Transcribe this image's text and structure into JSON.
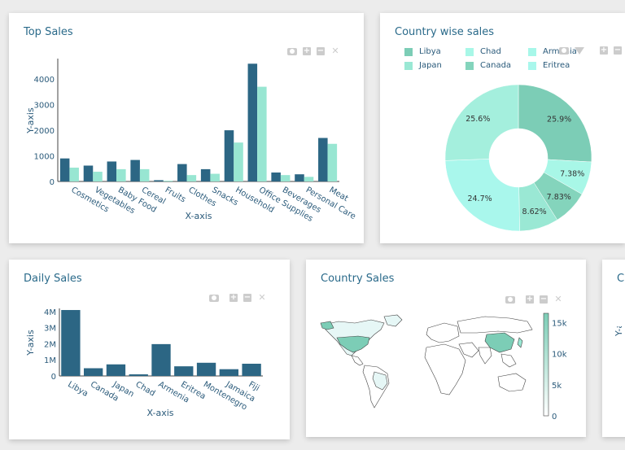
{
  "colors": {
    "bar_dark": "#2c6684",
    "bar_light": "#98e6d2",
    "axis_text": "#2a5a7a"
  },
  "cards": {
    "top_sales": {
      "title": "Top Sales"
    },
    "country_wise": {
      "title": "Country wise sales"
    },
    "daily_sales": {
      "title": "Daily Sales"
    },
    "country_sales": {
      "title": "Country Sales"
    },
    "partial": {
      "title": "C"
    }
  },
  "chart_data": [
    {
      "type": "bar",
      "xlabel": "X-axis",
      "ylabel": "Y-axis",
      "ylim": [
        0,
        4800
      ],
      "yticks": [
        0,
        1000,
        2000,
        3000,
        4000
      ],
      "categories": [
        "Cosmetics",
        "Vegetables",
        "Baby Food",
        "Cereal",
        "Fruits",
        "Clothes",
        "Snacks",
        "Household",
        "Office Supplies",
        "Beverages",
        "Personal Care",
        "Meat"
      ],
      "series": [
        {
          "values": [
            900,
            620,
            780,
            840,
            50,
            680,
            480,
            2000,
            4600,
            350,
            280,
            1700
          ]
        },
        {
          "values": [
            540,
            380,
            480,
            480,
            30,
            250,
            300,
            1520,
            3700,
            250,
            180,
            1470
          ]
        }
      ]
    },
    {
      "type": "pie",
      "labels": [
        "Libya",
        "Chad",
        "Armenia",
        "Japan",
        "Canada",
        "Eritrea"
      ],
      "values": [
        25.9,
        7.38,
        7.83,
        8.62,
        24.7,
        25.6
      ],
      "colors": [
        "#7ccdb6",
        "#a8f7e7",
        "#84d4bc",
        "#9ae8d4",
        "#a9f7ec",
        "#a4efdd"
      ],
      "legend_colors": [
        "#7ccdb6",
        "#a8f7e7",
        "#a7f7e9",
        "#9ae8d4",
        "#84d4bc",
        "#a9f7ec"
      ],
      "slice_labels": [
        "25.9%",
        "7.38%",
        "7.83%",
        "8.62%",
        "24.7%",
        "25.6%"
      ],
      "hole": true
    },
    {
      "type": "bar",
      "xlabel": "X-axis",
      "ylabel": "Y-axis",
      "ylim": [
        0,
        4200000
      ],
      "yticks": [
        0,
        1000000,
        2000000,
        3000000,
        4000000
      ],
      "ytick_labels": [
        "0",
        "1M",
        "2M",
        "3M",
        "4M"
      ],
      "categories": [
        "Libya",
        "Canada",
        "Japan",
        "Chad",
        "Armenia",
        "Eritrea",
        "Montenegro",
        "Jamaica",
        "Fiji"
      ],
      "values": [
        4100000,
        480000,
        720000,
        100000,
        1980000,
        600000,
        820000,
        420000,
        760000
      ]
    },
    {
      "type": "heatmap",
      "colorbar_ticks": [
        "15k",
        "10k",
        "5k",
        "0"
      ],
      "colorbar_values": [
        15000,
        10000,
        5000,
        0
      ]
    }
  ]
}
